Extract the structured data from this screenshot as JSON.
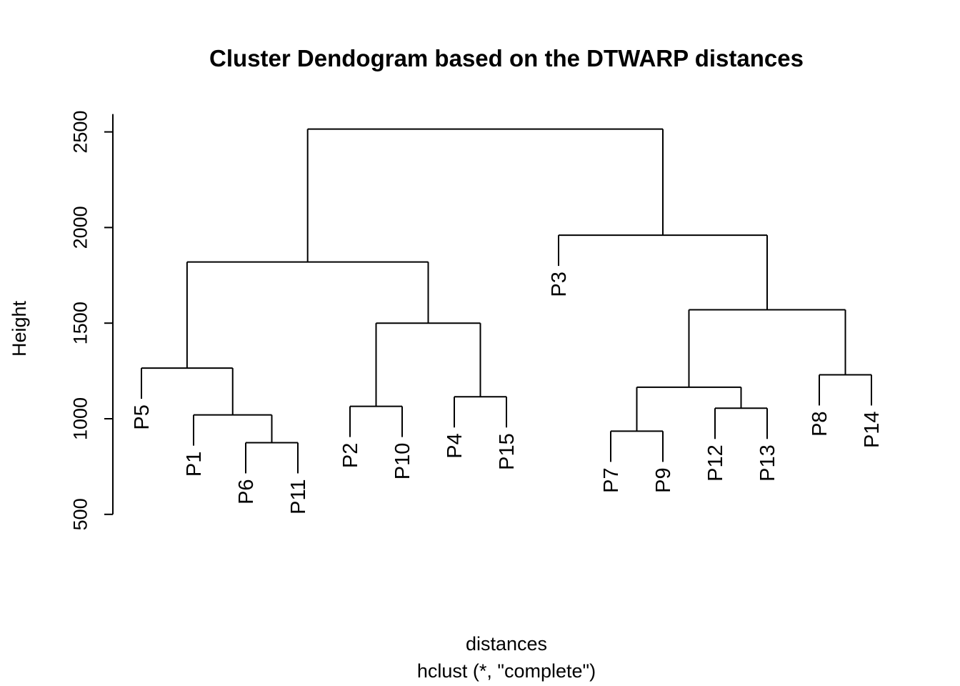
{
  "chart_data": {
    "type": "dendrogram",
    "title": "Cluster Dendogram based on the DTWARP distances",
    "xlabel": "distances",
    "sublabel": "hclust (*, \"complete\")",
    "ylabel": "Height",
    "yticks": [
      500,
      1000,
      1500,
      2000,
      2500
    ],
    "ylim": [
      500,
      2500
    ],
    "leaves": [
      "P5",
      "P1",
      "P6",
      "P11",
      "P2",
      "P10",
      "P4",
      "P15",
      "P3",
      "P7",
      "P9",
      "P12",
      "P13",
      "P8",
      "P14"
    ],
    "merges": [
      {
        "left": "P6",
        "right": "P11",
        "height": 875
      },
      {
        "left": "P7",
        "right": "P9",
        "height": 935
      },
      {
        "left": "P1",
        "right": "(P6,P11)",
        "height": 1020
      },
      {
        "left": "P12",
        "right": "P13",
        "height": 1055
      },
      {
        "left": "P2",
        "right": "P10",
        "height": 1065
      },
      {
        "left": "P4",
        "right": "P15",
        "height": 1115
      },
      {
        "left": "(P7,P9)",
        "right": "(P12,P13)",
        "height": 1165
      },
      {
        "left": "P8",
        "right": "P14",
        "height": 1230
      },
      {
        "left": "P5",
        "right": "(P1,(P6,P11))",
        "height": 1265
      },
      {
        "left": "(P2,P10)",
        "right": "(P4,P15)",
        "height": 1500
      },
      {
        "left": "((P7,P9),(P12,P13))",
        "right": "(P8,P14)",
        "height": 1570
      },
      {
        "left": "(P5,...)",
        "right": "((P2,P10),(P4,P15))",
        "height": 1820
      },
      {
        "left": "P3",
        "right": "(((P7,P9),(P12,P13)),(P8,P14))",
        "height": 1960
      },
      {
        "left": "cluster-A",
        "right": "cluster-B",
        "height": 2515
      }
    ]
  }
}
